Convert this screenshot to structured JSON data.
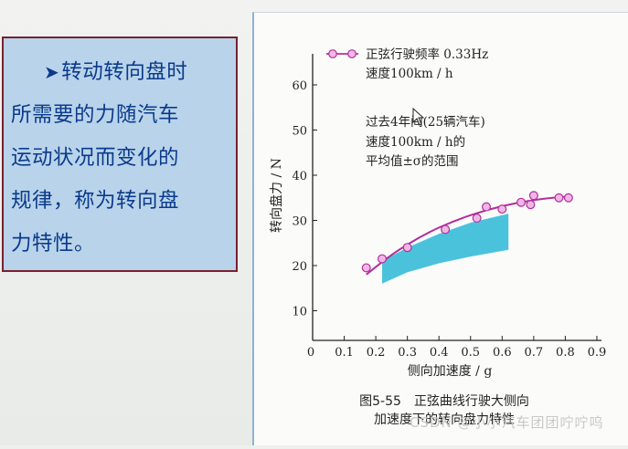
{
  "text_panel": {
    "bullet": "➤",
    "lines": [
      "转动转向盘时",
      "所需要的力随汽车",
      "运动状况而变化的",
      "规律，称为转向盘",
      "力特性。"
    ]
  },
  "chart_data": {
    "type": "scatter",
    "title": "图5-55　正弦曲线行驶大侧向",
    "title_line2": "加速度下的转向盘力特性",
    "xlabel": "侧向加速度 / g",
    "ylabel": "转向盘力 / N",
    "xlim": [
      0,
      0.9
    ],
    "ylim": [
      0,
      65
    ],
    "xticks": [
      "0",
      "0.1",
      "0.2",
      "0.3",
      "0.4",
      "0.5",
      "0.6",
      "0.7",
      "0.8",
      "0.9"
    ],
    "yticks": [
      "10",
      "20",
      "30",
      "40",
      "50",
      "60"
    ],
    "legend": {
      "line1": "正弦行驶频率 0.33Hz",
      "line2": "速度100km / h"
    },
    "annotation": {
      "line1": "过去4年间(25辆汽车)",
      "line2": "速度100km / h的",
      "line3": "平均值±σ的范围"
    },
    "series": [
      {
        "marker": "circle",
        "color": "#b0309a",
        "x": [
          0.17,
          0.22,
          0.3,
          0.42,
          0.52,
          0.55,
          0.6,
          0.66,
          0.69,
          0.7,
          0.78,
          0.81
        ],
        "y": [
          19.5,
          21.5,
          24.0,
          28.0,
          30.5,
          33.0,
          32.5,
          34.0,
          33.5,
          35.5,
          35.0,
          35.0
        ]
      }
    ],
    "fit_curve": {
      "color": "#b0309a",
      "x": [
        0.17,
        0.25,
        0.35,
        0.45,
        0.55,
        0.65,
        0.75,
        0.82
      ],
      "y": [
        18.0,
        22.5,
        26.8,
        30.0,
        32.3,
        34.0,
        35.0,
        35.3
      ]
    },
    "band": {
      "color": "#2bb7d6",
      "x": [
        0.22,
        0.3,
        0.4,
        0.5,
        0.62
      ],
      "lower": [
        16.0,
        18.5,
        20.5,
        22.0,
        23.5
      ],
      "upper": [
        21.0,
        24.0,
        27.0,
        29.5,
        31.5
      ]
    },
    "grid": false
  },
  "watermark": "CSDN @小小汽车团团咛咛呜"
}
